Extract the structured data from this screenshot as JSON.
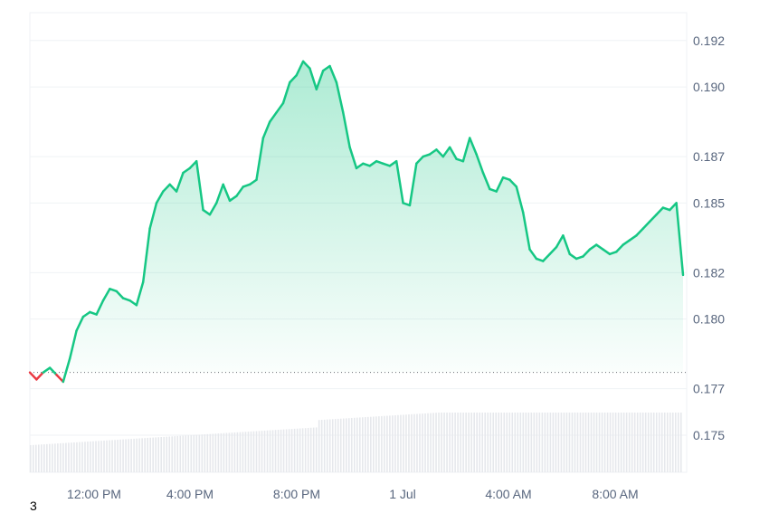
{
  "chart_data": {
    "type": "area",
    "x_ticks": [
      "12:00 PM",
      "4:00 PM",
      "8:00 PM",
      "1 Jul",
      "4:00 AM",
      "8:00 AM"
    ],
    "y_ticks": [
      0.192,
      0.19,
      0.187,
      0.185,
      0.182,
      0.18,
      0.177,
      0.175
    ],
    "y_tick_labels": [
      "0.192",
      "0.190",
      "0.187",
      "0.185",
      "0.182",
      "0.180",
      "0.177",
      "0.175"
    ],
    "ylim": [
      0.1734,
      0.1932
    ],
    "baseline": 0.1777,
    "grid": true,
    "colors": {
      "up": "#16c784",
      "down": "#ea3943",
      "grid": "#eff2f5",
      "volume": "#e6e8ec",
      "baseline": "#6b6f76"
    },
    "x": [
      0,
      0.25,
      0.5,
      0.75,
      1,
      1.25,
      1.5,
      1.75,
      2,
      2.25,
      2.5,
      2.75,
      3,
      3.25,
      3.5,
      3.75,
      4,
      4.25,
      4.5,
      4.75,
      5,
      5.25,
      5.5,
      5.75,
      6,
      6.25,
      6.5,
      6.75,
      7,
      7.25,
      7.5,
      7.75,
      8,
      8.25,
      8.5,
      8.75,
      9,
      9.25,
      9.5,
      9.75,
      10,
      10.25,
      10.5,
      10.75,
      11,
      11.25,
      11.5,
      11.75,
      12,
      12.25,
      12.5,
      12.75,
      13,
      13.25,
      13.5,
      13.75,
      14,
      14.25,
      14.5,
      14.75,
      15,
      15.25,
      15.5,
      15.75,
      16,
      16.25,
      16.5,
      16.75,
      17,
      17.25,
      17.5,
      17.75,
      18,
      18.25,
      18.5,
      18.75,
      19,
      19.25,
      19.5,
      19.75,
      20,
      20.25,
      20.5,
      20.75,
      21,
      21.25,
      21.5,
      21.75,
      22,
      22.25,
      22.5,
      22.75,
      23,
      23.25,
      23.5,
      23.75,
      24,
      24.25,
      24.5
    ],
    "series": [
      {
        "values": [
          0.1777,
          0.1774,
          0.1777,
          0.1779,
          0.1776,
          0.1773,
          0.1783,
          0.1795,
          0.1801,
          0.1803,
          0.1802,
          0.1808,
          0.1813,
          0.1812,
          0.1809,
          0.1808,
          0.1806,
          0.1816,
          0.1839,
          0.185,
          0.1855,
          0.1858,
          0.1855,
          0.1863,
          0.1865,
          0.1868,
          0.1847,
          0.1845,
          0.185,
          0.1858,
          0.1851,
          0.1853,
          0.1857,
          0.1858,
          0.186,
          0.1878,
          0.1885,
          0.1889,
          0.1893,
          0.1902,
          0.1905,
          0.1911,
          0.1908,
          0.1899,
          0.1907,
          0.1909,
          0.1902,
          0.1889,
          0.1874,
          0.1865,
          0.1867,
          0.1866,
          0.1868,
          0.1867,
          0.1866,
          0.1868,
          0.185,
          0.1849,
          0.1867,
          0.187,
          0.1871,
          0.1873,
          0.187,
          0.1874,
          0.1869,
          0.1868,
          0.1878,
          0.1871,
          0.1863,
          0.1856,
          0.1855,
          0.1861,
          0.186,
          0.1857,
          0.1846,
          0.183,
          0.1826,
          0.1825,
          0.1828,
          0.1831,
          0.1836,
          0.1828,
          0.1826,
          0.1827,
          0.183,
          0.1832,
          0.183,
          0.1828,
          0.1829,
          0.1832,
          0.1834,
          0.1836,
          0.1839,
          0.1842,
          0.1845,
          0.1848,
          0.1847,
          0.185,
          0.1819
        ]
      }
    ]
  },
  "footnote": "3"
}
